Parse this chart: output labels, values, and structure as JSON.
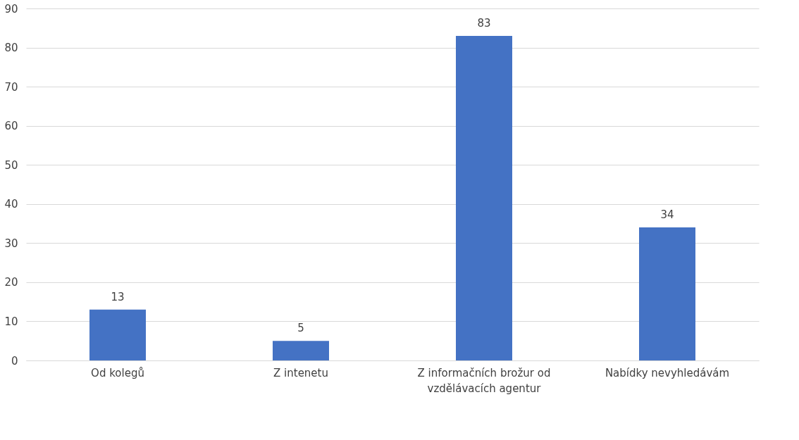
{
  "chart_data": {
    "type": "bar",
    "categories": [
      "Od kolegů",
      "Z intenetu",
      "Z informačních brožur od vzdělávacích agentur",
      "Nabídky nevyhledávám"
    ],
    "values": [
      13,
      5,
      83,
      34
    ],
    "color": "#4472c4",
    "ylim": [
      0,
      90
    ],
    "yticks": [
      0,
      10,
      20,
      30,
      40,
      50,
      60,
      70,
      80,
      90
    ],
    "grid": "y",
    "data_labels": true
  }
}
